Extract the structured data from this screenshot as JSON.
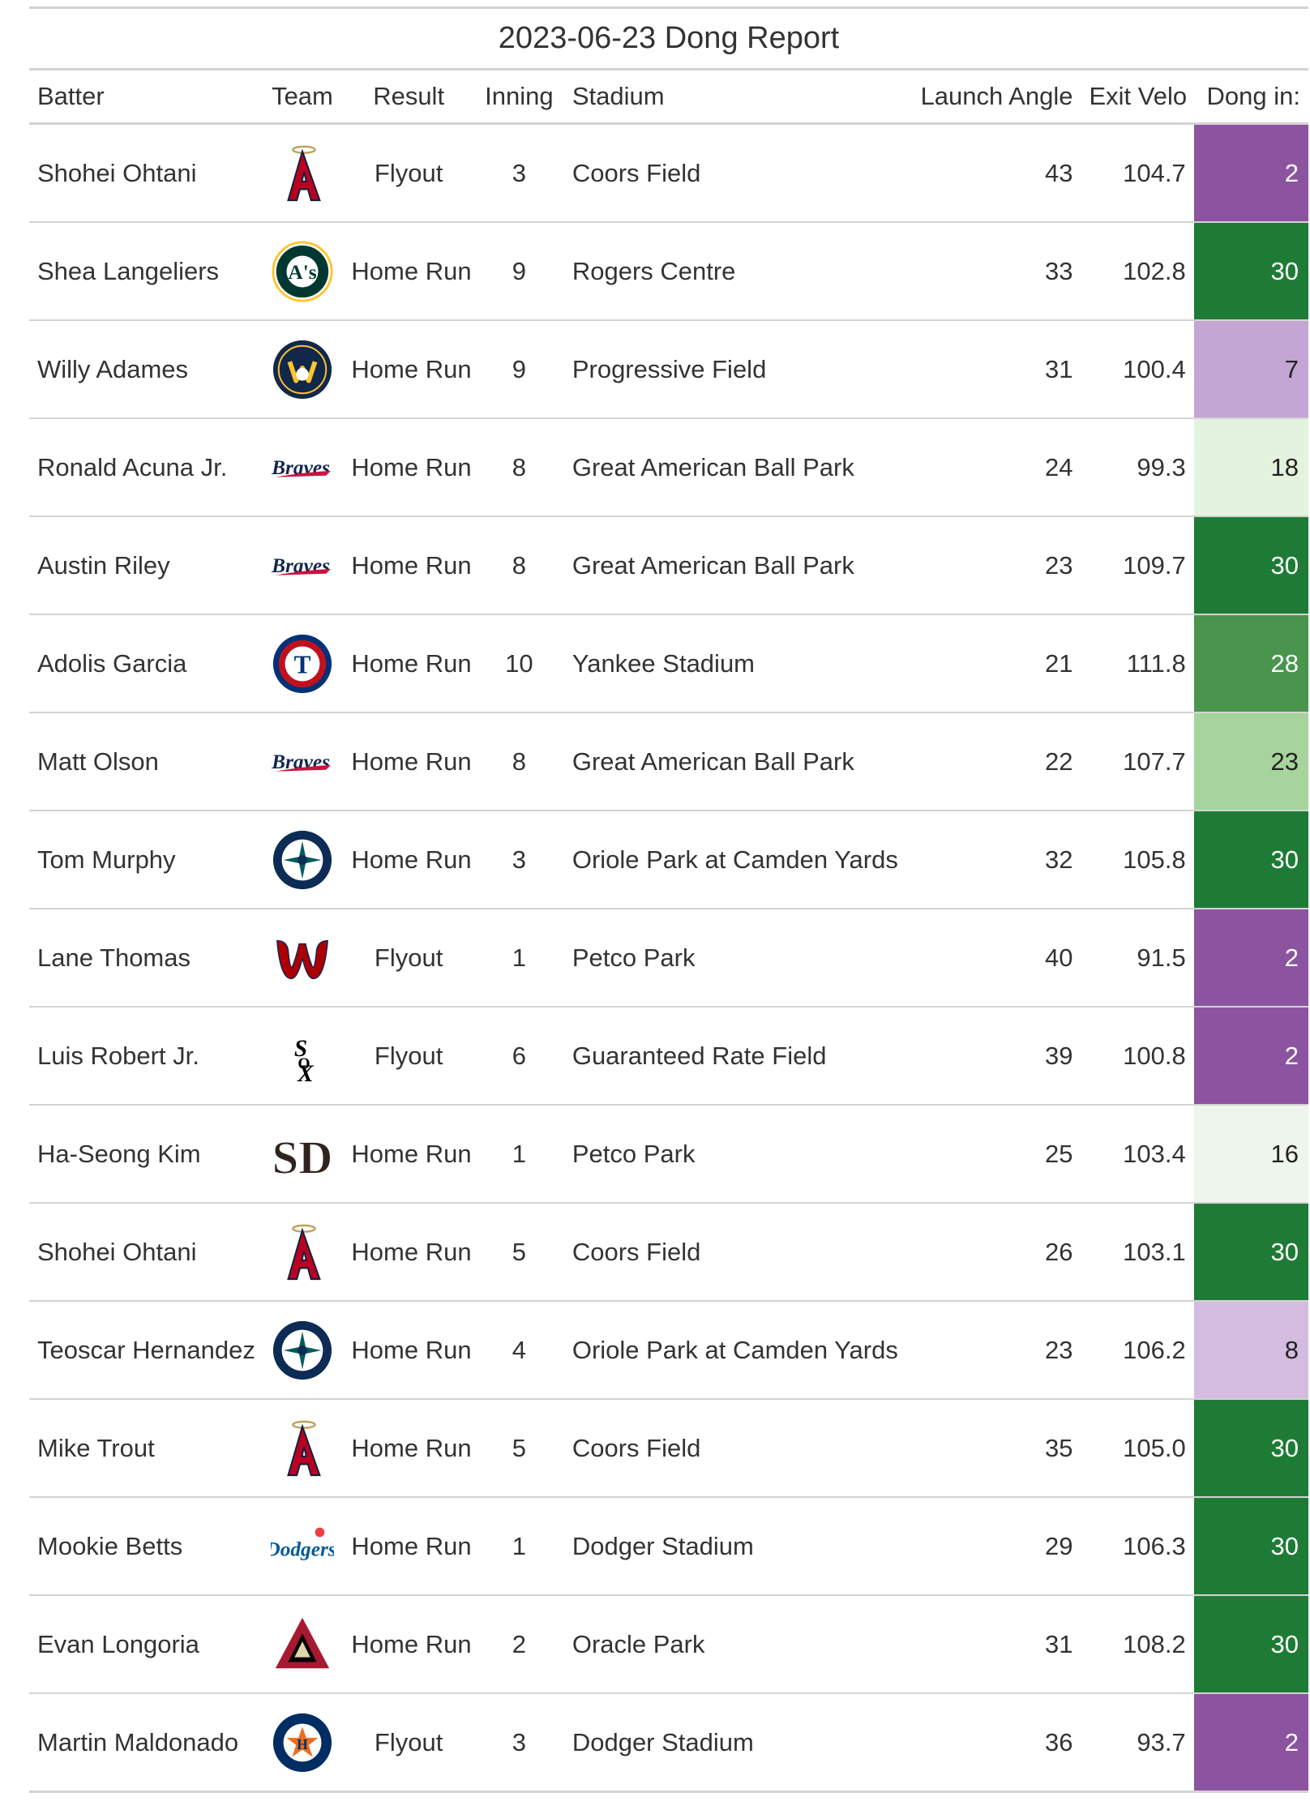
{
  "title": "2023-06-23 Dong Report",
  "columns": [
    "Batter",
    "Team",
    "Result",
    "Inning",
    "Stadium",
    "Launch Angle",
    "Exit Velo",
    "Dong in:"
  ],
  "colors": {
    "purple_strong": "#8c54a0",
    "purple_light": "#c3a6d3",
    "purple_lighter": "#d3bce0",
    "green_dark": "#1e7b36",
    "green_mid": "#49954e",
    "green_light": "#a6d49c",
    "green_pale": "#e3f3dd",
    "green_faint": "#eef5ec"
  },
  "rows": [
    {
      "batter": "Shohei Ohtani",
      "team": "angels-logo",
      "result": "Flyout",
      "inning": "3",
      "stadium": "Coors Field",
      "launch_angle": "43",
      "exit_velo": "104.7",
      "dong_in": "2",
      "dong_color": "#8c54a0",
      "dong_text": "#ffffff"
    },
    {
      "batter": "Shea Langeliers",
      "team": "athletics-logo",
      "result": "Home Run",
      "inning": "9",
      "stadium": "Rogers Centre",
      "launch_angle": "33",
      "exit_velo": "102.8",
      "dong_in": "30",
      "dong_color": "#1e7b36",
      "dong_text": "#ffffff"
    },
    {
      "batter": "Willy Adames",
      "team": "brewers-logo",
      "result": "Home Run",
      "inning": "9",
      "stadium": "Progressive Field",
      "launch_angle": "31",
      "exit_velo": "100.4",
      "dong_in": "7",
      "dong_color": "#c3a6d3",
      "dong_text": "#222222"
    },
    {
      "batter": "Ronald Acuna Jr.",
      "team": "braves-logo",
      "result": "Home Run",
      "inning": "8",
      "stadium": "Great American Ball Park",
      "launch_angle": "24",
      "exit_velo": "99.3",
      "dong_in": "18",
      "dong_color": "#e3f3dd",
      "dong_text": "#222222"
    },
    {
      "batter": "Austin Riley",
      "team": "braves-logo",
      "result": "Home Run",
      "inning": "8",
      "stadium": "Great American Ball Park",
      "launch_angle": "23",
      "exit_velo": "109.7",
      "dong_in": "30",
      "dong_color": "#1e7b36",
      "dong_text": "#ffffff"
    },
    {
      "batter": "Adolis Garcia",
      "team": "rangers-logo",
      "result": "Home Run",
      "inning": "10",
      "stadium": "Yankee Stadium",
      "launch_angle": "21",
      "exit_velo": "111.8",
      "dong_in": "28",
      "dong_color": "#49954e",
      "dong_text": "#ffffff"
    },
    {
      "batter": "Matt Olson",
      "team": "braves-logo",
      "result": "Home Run",
      "inning": "8",
      "stadium": "Great American Ball Park",
      "launch_angle": "22",
      "exit_velo": "107.7",
      "dong_in": "23",
      "dong_color": "#a6d49c",
      "dong_text": "#222222"
    },
    {
      "batter": "Tom Murphy",
      "team": "mariners-logo",
      "result": "Home Run",
      "inning": "3",
      "stadium": "Oriole Park at Camden Yards",
      "launch_angle": "32",
      "exit_velo": "105.8",
      "dong_in": "30",
      "dong_color": "#1e7b36",
      "dong_text": "#ffffff"
    },
    {
      "batter": "Lane Thomas",
      "team": "nationals-logo",
      "result": "Flyout",
      "inning": "1",
      "stadium": "Petco Park",
      "launch_angle": "40",
      "exit_velo": "91.5",
      "dong_in": "2",
      "dong_color": "#8c54a0",
      "dong_text": "#ffffff"
    },
    {
      "batter": "Luis Robert Jr.",
      "team": "white-sox-logo",
      "result": "Flyout",
      "inning": "6",
      "stadium": "Guaranteed Rate Field",
      "launch_angle": "39",
      "exit_velo": "100.8",
      "dong_in": "2",
      "dong_color": "#8c54a0",
      "dong_text": "#ffffff"
    },
    {
      "batter": "Ha-Seong Kim",
      "team": "padres-logo",
      "result": "Home Run",
      "inning": "1",
      "stadium": "Petco Park",
      "launch_angle": "25",
      "exit_velo": "103.4",
      "dong_in": "16",
      "dong_color": "#eef5ec",
      "dong_text": "#222222"
    },
    {
      "batter": "Shohei Ohtani",
      "team": "angels-logo",
      "result": "Home Run",
      "inning": "5",
      "stadium": "Coors Field",
      "launch_angle": "26",
      "exit_velo": "103.1",
      "dong_in": "30",
      "dong_color": "#1e7b36",
      "dong_text": "#ffffff"
    },
    {
      "batter": "Teoscar Hernandez",
      "team": "mariners-logo",
      "result": "Home Run",
      "inning": "4",
      "stadium": "Oriole Park at Camden Yards",
      "launch_angle": "23",
      "exit_velo": "106.2",
      "dong_in": "8",
      "dong_color": "#d3bce0",
      "dong_text": "#222222"
    },
    {
      "batter": "Mike Trout",
      "team": "angels-logo",
      "result": "Home Run",
      "inning": "5",
      "stadium": "Coors Field",
      "launch_angle": "35",
      "exit_velo": "105.0",
      "dong_in": "30",
      "dong_color": "#1e7b36",
      "dong_text": "#ffffff"
    },
    {
      "batter": "Mookie Betts",
      "team": "dodgers-logo",
      "result": "Home Run",
      "inning": "1",
      "stadium": "Dodger Stadium",
      "launch_angle": "29",
      "exit_velo": "106.3",
      "dong_in": "30",
      "dong_color": "#1e7b36",
      "dong_text": "#ffffff"
    },
    {
      "batter": "Evan Longoria",
      "team": "diamondbacks-logo",
      "result": "Home Run",
      "inning": "2",
      "stadium": "Oracle Park",
      "launch_angle": "31",
      "exit_velo": "108.2",
      "dong_in": "30",
      "dong_color": "#1e7b36",
      "dong_text": "#ffffff"
    },
    {
      "batter": "Martin Maldonado",
      "team": "astros-logo",
      "result": "Flyout",
      "inning": "3",
      "stadium": "Dodger Stadium",
      "launch_angle": "36",
      "exit_velo": "93.7",
      "dong_in": "2",
      "dong_color": "#8c54a0",
      "dong_text": "#ffffff"
    }
  ]
}
